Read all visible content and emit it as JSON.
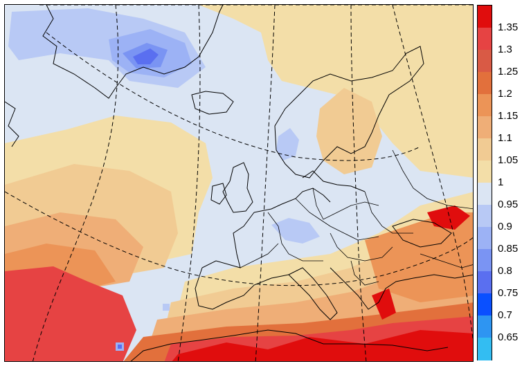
{
  "colorbar": {
    "labels": [
      "1.35",
      "1.3",
      "1.25",
      "1.2",
      "1.15",
      "1.1",
      "1.05",
      "1",
      "0.95",
      "0.9",
      "0.85",
      "0.8",
      "0.75",
      "0.7",
      "0.65"
    ],
    "colors": [
      "#e00d0d",
      "#e64343",
      "#d95a45",
      "#e2703c",
      "#ec9457",
      "#efae77",
      "#f1cb93",
      "#f3dea8",
      "#dbe5f3",
      "#b8c9f5",
      "#9cb2f5",
      "#7a94f3",
      "#5a6ff0",
      "#0a50ff",
      "#2e95f2",
      "#33bdf2"
    ]
  }
}
